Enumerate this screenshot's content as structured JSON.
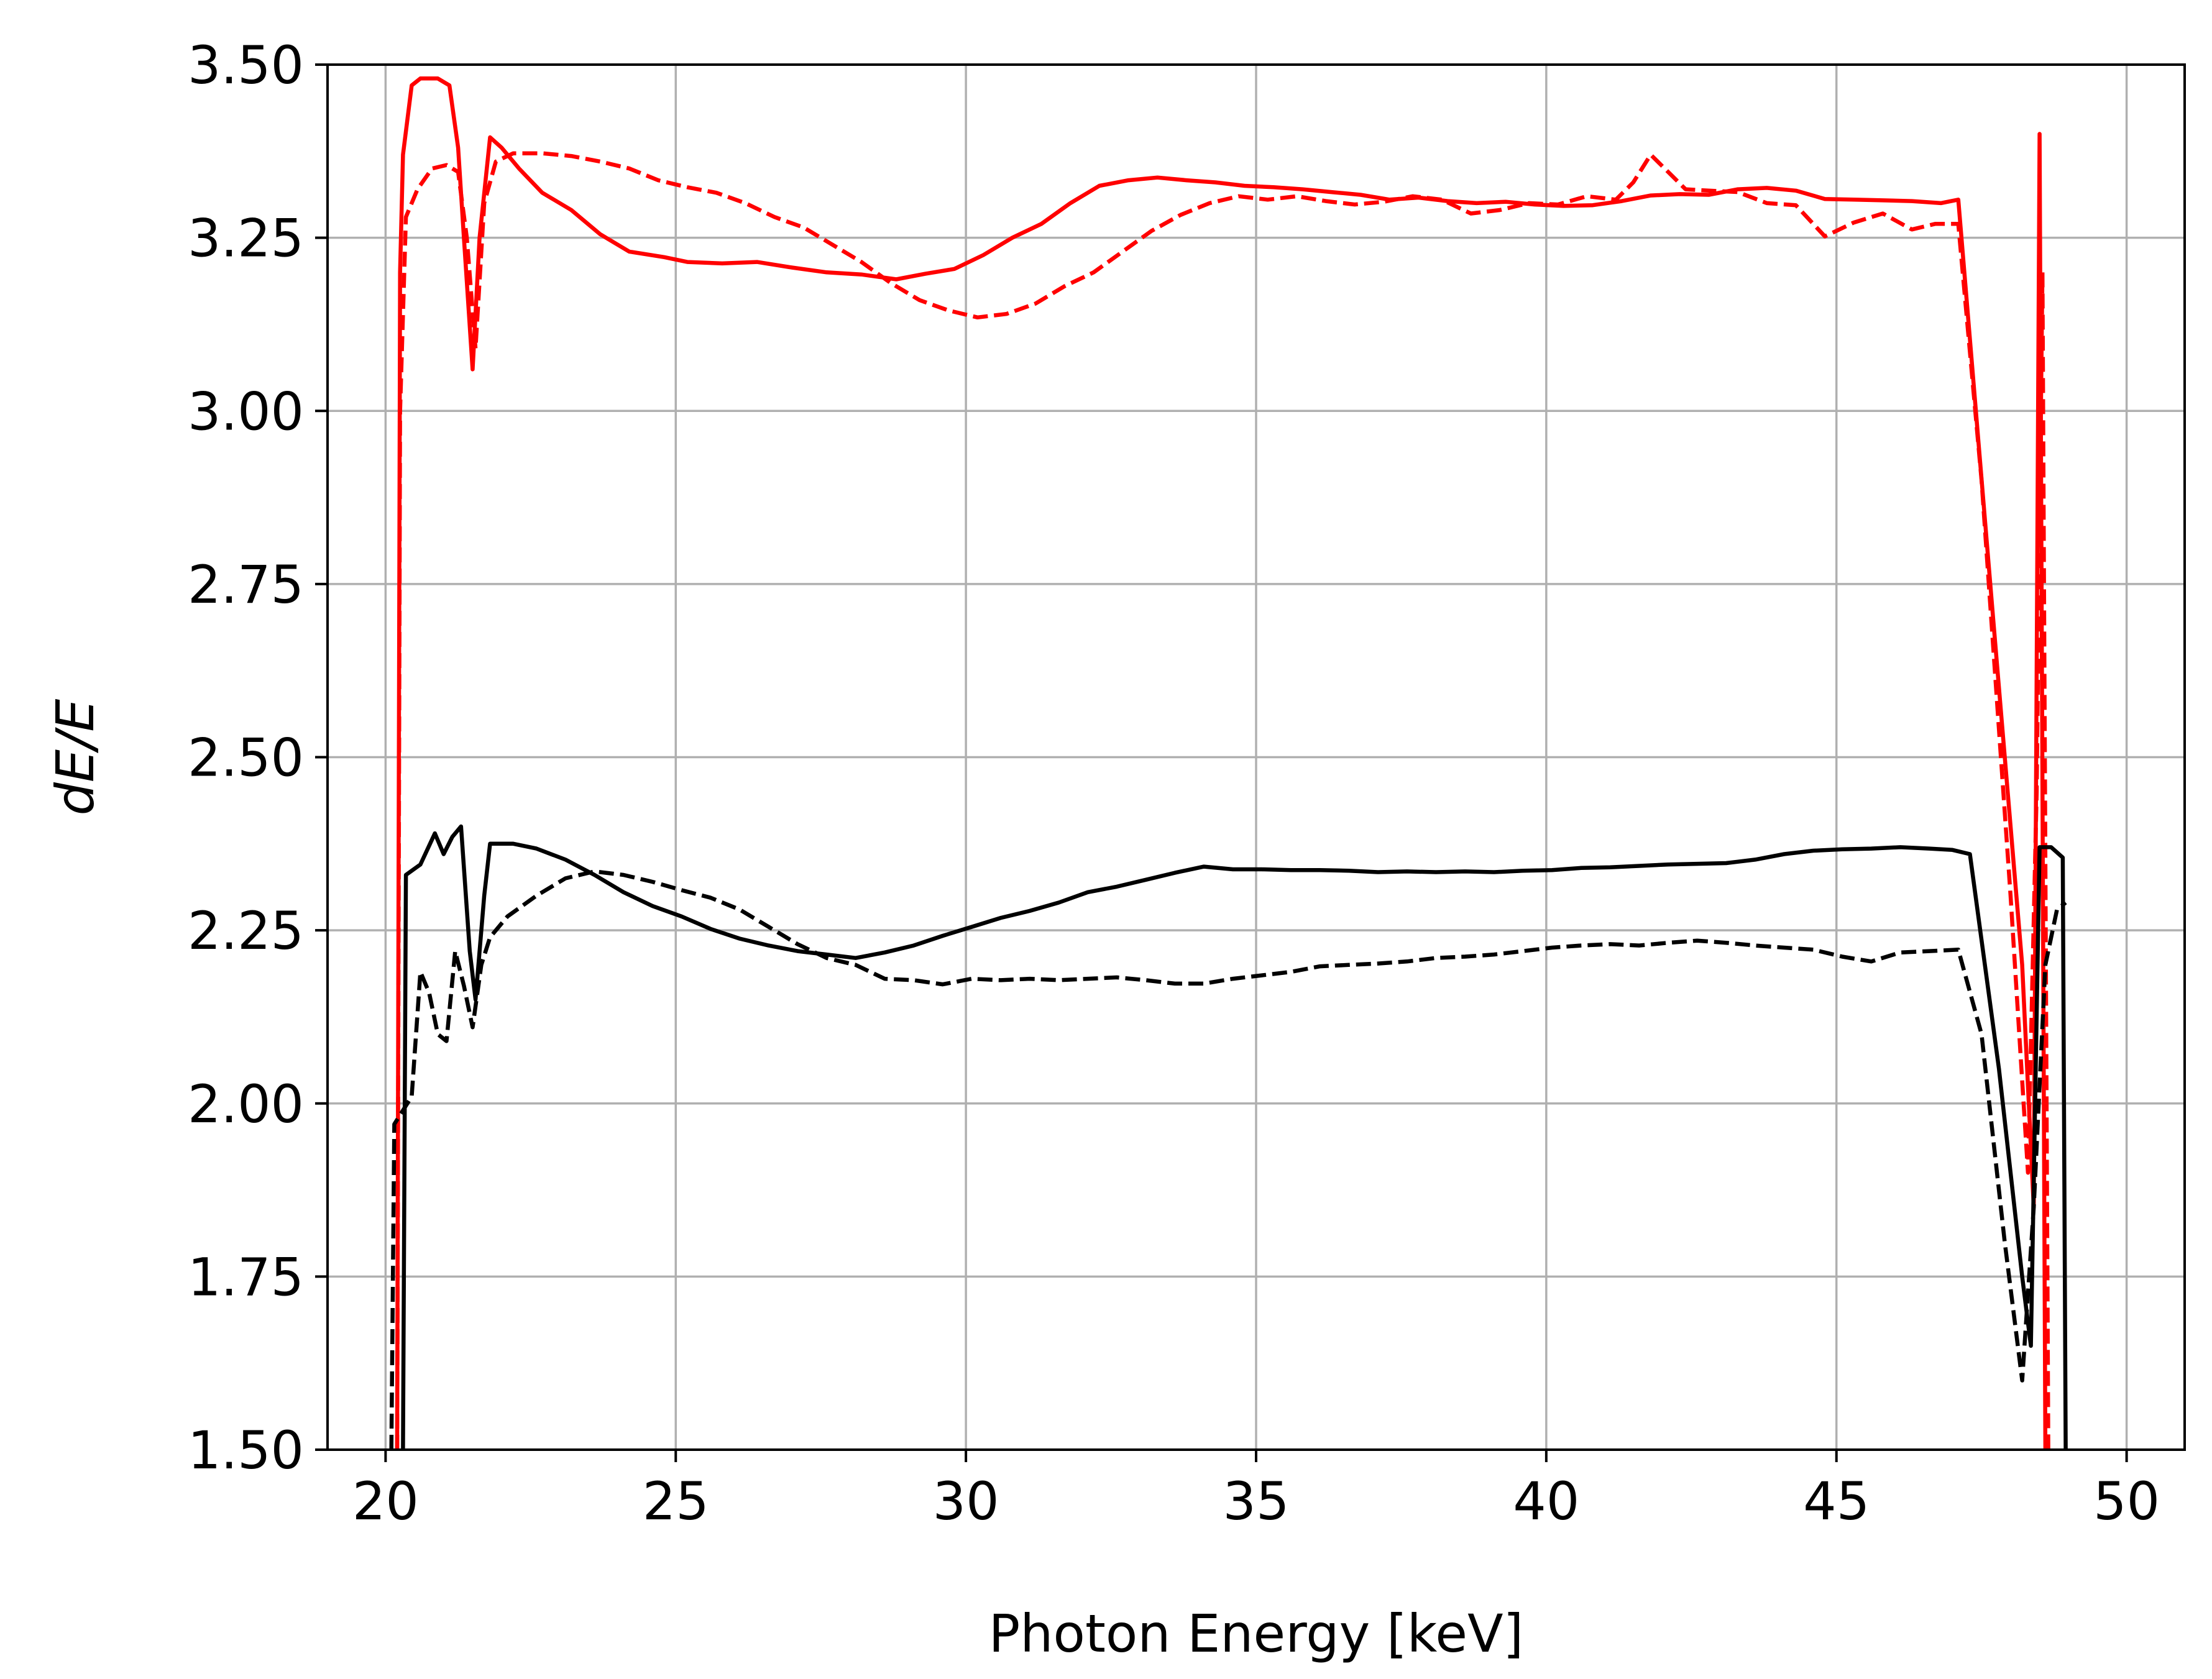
{
  "chart_data": {
    "type": "line",
    "title": "",
    "xlabel": "Photon Energy [keV]",
    "ylabel": "dE/E",
    "xlim": [
      19,
      51
    ],
    "ylim": [
      1.5,
      3.5
    ],
    "xticks": [
      20,
      25,
      30,
      35,
      40,
      45,
      50
    ],
    "yticks": [
      1.5,
      1.75,
      2.0,
      2.25,
      2.5,
      2.75,
      3.0,
      3.25,
      3.5
    ],
    "xtick_labels": [
      "20",
      "25",
      "30",
      "35",
      "40",
      "45",
      "50"
    ],
    "ytick_labels": [
      "1.50",
      "1.75",
      "2.00",
      "2.25",
      "2.50",
      "2.75",
      "3.00",
      "3.25",
      "3.50"
    ],
    "grid": true,
    "legend": "none",
    "series": [
      {
        "color": "#ff0000",
        "style": "solid",
        "points": [
          [
            20.2,
            1.5
          ],
          [
            20.25,
            3.2
          ],
          [
            20.3,
            3.37
          ],
          [
            20.45,
            3.47
          ],
          [
            20.6,
            3.48
          ],
          [
            20.9,
            3.48
          ],
          [
            21.1,
            3.47
          ],
          [
            21.25,
            3.38
          ],
          [
            21.35,
            3.25
          ],
          [
            21.5,
            3.06
          ],
          [
            21.62,
            3.25
          ],
          [
            21.8,
            3.395
          ],
          [
            22.0,
            3.38
          ],
          [
            22.3,
            3.35
          ],
          [
            22.7,
            3.315
          ],
          [
            23.2,
            3.29
          ],
          [
            23.7,
            3.255
          ],
          [
            24.2,
            3.23
          ],
          [
            24.8,
            3.222
          ],
          [
            25.2,
            3.215
          ],
          [
            25.8,
            3.213
          ],
          [
            26.4,
            3.215
          ],
          [
            27.0,
            3.207
          ],
          [
            27.6,
            3.2
          ],
          [
            28.2,
            3.197
          ],
          [
            28.8,
            3.19
          ],
          [
            29.3,
            3.198
          ],
          [
            29.8,
            3.205
          ],
          [
            30.3,
            3.225
          ],
          [
            30.8,
            3.25
          ],
          [
            31.3,
            3.27
          ],
          [
            31.8,
            3.3
          ],
          [
            32.3,
            3.325
          ],
          [
            32.8,
            3.333
          ],
          [
            33.3,
            3.337
          ],
          [
            33.8,
            3.333
          ],
          [
            34.3,
            3.33
          ],
          [
            34.8,
            3.325
          ],
          [
            35.3,
            3.323
          ],
          [
            35.8,
            3.32
          ],
          [
            36.3,
            3.316
          ],
          [
            36.8,
            3.312
          ],
          [
            37.3,
            3.305
          ],
          [
            37.8,
            3.308
          ],
          [
            38.3,
            3.303
          ],
          [
            38.8,
            3.3
          ],
          [
            39.3,
            3.302
          ],
          [
            39.8,
            3.298
          ],
          [
            40.3,
            3.296
          ],
          [
            40.8,
            3.297
          ],
          [
            41.3,
            3.303
          ],
          [
            41.8,
            3.311
          ],
          [
            42.3,
            3.313
          ],
          [
            42.8,
            3.312
          ],
          [
            43.3,
            3.32
          ],
          [
            43.8,
            3.322
          ],
          [
            44.3,
            3.318
          ],
          [
            44.8,
            3.306
          ],
          [
            45.3,
            3.305
          ],
          [
            45.8,
            3.304
          ],
          [
            46.3,
            3.303
          ],
          [
            46.8,
            3.3
          ],
          [
            47.1,
            3.305
          ],
          [
            47.7,
            2.7
          ],
          [
            48.2,
            2.2
          ],
          [
            48.4,
            1.85
          ],
          [
            48.5,
            3.4
          ],
          [
            48.6,
            1.5
          ]
        ]
      },
      {
        "color": "#ff0000",
        "style": "dashed",
        "points": [
          [
            20.2,
            1.5
          ],
          [
            20.25,
            3.0
          ],
          [
            20.35,
            3.28
          ],
          [
            20.55,
            3.32
          ],
          [
            20.8,
            3.35
          ],
          [
            21.05,
            3.355
          ],
          [
            21.25,
            3.345
          ],
          [
            21.4,
            3.25
          ],
          [
            21.55,
            3.09
          ],
          [
            21.7,
            3.3
          ],
          [
            21.9,
            3.36
          ],
          [
            22.2,
            3.372
          ],
          [
            22.7,
            3.372
          ],
          [
            23.2,
            3.368
          ],
          [
            23.7,
            3.36
          ],
          [
            24.2,
            3.35
          ],
          [
            24.7,
            3.333
          ],
          [
            25.2,
            3.323
          ],
          [
            25.7,
            3.315
          ],
          [
            26.2,
            3.3
          ],
          [
            26.7,
            3.28
          ],
          [
            27.2,
            3.265
          ],
          [
            27.7,
            3.24
          ],
          [
            28.2,
            3.215
          ],
          [
            28.7,
            3.185
          ],
          [
            29.2,
            3.16
          ],
          [
            29.7,
            3.145
          ],
          [
            30.2,
            3.135
          ],
          [
            30.7,
            3.14
          ],
          [
            31.2,
            3.155
          ],
          [
            31.7,
            3.18
          ],
          [
            32.2,
            3.2
          ],
          [
            32.7,
            3.23
          ],
          [
            33.2,
            3.26
          ],
          [
            33.7,
            3.283
          ],
          [
            34.2,
            3.3
          ],
          [
            34.7,
            3.31
          ],
          [
            35.2,
            3.305
          ],
          [
            35.7,
            3.31
          ],
          [
            36.2,
            3.303
          ],
          [
            36.7,
            3.298
          ],
          [
            37.2,
            3.302
          ],
          [
            37.7,
            3.31
          ],
          [
            38.2,
            3.305
          ],
          [
            38.7,
            3.285
          ],
          [
            39.2,
            3.29
          ],
          [
            39.7,
            3.3
          ],
          [
            40.2,
            3.298
          ],
          [
            40.7,
            3.31
          ],
          [
            41.2,
            3.305
          ],
          [
            41.5,
            3.33
          ],
          [
            41.8,
            3.37
          ],
          [
            42.1,
            3.345
          ],
          [
            42.4,
            3.32
          ],
          [
            42.8,
            3.318
          ],
          [
            43.3,
            3.316
          ],
          [
            43.8,
            3.3
          ],
          [
            44.3,
            3.297
          ],
          [
            44.8,
            3.252
          ],
          [
            45.3,
            3.272
          ],
          [
            45.8,
            3.285
          ],
          [
            46.3,
            3.262
          ],
          [
            46.7,
            3.27
          ],
          [
            47.1,
            3.27
          ],
          [
            47.5,
            2.9
          ],
          [
            48.0,
            2.3
          ],
          [
            48.3,
            1.9
          ],
          [
            48.45,
            2.45
          ],
          [
            48.55,
            3.2
          ],
          [
            48.65,
            1.5
          ]
        ]
      },
      {
        "color": "#000000",
        "style": "solid",
        "points": [
          [
            20.3,
            1.5
          ],
          [
            20.35,
            2.33
          ],
          [
            20.6,
            2.345
          ],
          [
            20.85,
            2.39
          ],
          [
            21.0,
            2.36
          ],
          [
            21.15,
            2.385
          ],
          [
            21.3,
            2.4
          ],
          [
            21.45,
            2.22
          ],
          [
            21.55,
            2.15
          ],
          [
            21.7,
            2.3
          ],
          [
            21.8,
            2.375
          ],
          [
            22.2,
            2.375
          ],
          [
            22.6,
            2.368
          ],
          [
            23.1,
            2.352
          ],
          [
            23.6,
            2.33
          ],
          [
            24.1,
            2.305
          ],
          [
            24.6,
            2.285
          ],
          [
            25.1,
            2.27
          ],
          [
            25.6,
            2.252
          ],
          [
            26.1,
            2.238
          ],
          [
            26.6,
            2.228
          ],
          [
            27.1,
            2.22
          ],
          [
            27.6,
            2.215
          ],
          [
            28.1,
            2.21
          ],
          [
            28.6,
            2.218
          ],
          [
            29.1,
            2.228
          ],
          [
            29.6,
            2.242
          ],
          [
            30.1,
            2.255
          ],
          [
            30.6,
            2.268
          ],
          [
            31.1,
            2.278
          ],
          [
            31.6,
            2.29
          ],
          [
            32.1,
            2.305
          ],
          [
            32.6,
            2.313
          ],
          [
            33.1,
            2.323
          ],
          [
            33.6,
            2.333
          ],
          [
            34.1,
            2.342
          ],
          [
            34.6,
            2.338
          ],
          [
            35.1,
            2.338
          ],
          [
            35.6,
            2.337
          ],
          [
            36.1,
            2.337
          ],
          [
            36.6,
            2.336
          ],
          [
            37.1,
            2.334
          ],
          [
            37.6,
            2.335
          ],
          [
            38.1,
            2.334
          ],
          [
            38.6,
            2.335
          ],
          [
            39.1,
            2.334
          ],
          [
            39.6,
            2.336
          ],
          [
            40.1,
            2.337
          ],
          [
            40.6,
            2.34
          ],
          [
            41.1,
            2.341
          ],
          [
            41.6,
            2.343
          ],
          [
            42.1,
            2.345
          ],
          [
            42.6,
            2.346
          ],
          [
            43.1,
            2.347
          ],
          [
            43.6,
            2.352
          ],
          [
            44.1,
            2.36
          ],
          [
            44.6,
            2.365
          ],
          [
            45.1,
            2.367
          ],
          [
            45.6,
            2.368
          ],
          [
            46.1,
            2.37
          ],
          [
            46.6,
            2.368
          ],
          [
            47.0,
            2.366
          ],
          [
            47.3,
            2.36
          ],
          [
            47.8,
            2.05
          ],
          [
            48.2,
            1.75
          ],
          [
            48.35,
            1.65
          ],
          [
            48.5,
            2.37
          ],
          [
            48.7,
            2.37
          ],
          [
            48.9,
            2.355
          ],
          [
            48.95,
            1.5
          ]
        ]
      },
      {
        "color": "#000000",
        "style": "dashed",
        "points": [
          [
            20.1,
            1.5
          ],
          [
            20.15,
            1.97
          ],
          [
            20.3,
            1.99
          ],
          [
            20.45,
            2.01
          ],
          [
            20.6,
            2.19
          ],
          [
            20.75,
            2.16
          ],
          [
            20.9,
            2.1
          ],
          [
            21.05,
            2.09
          ],
          [
            21.2,
            2.22
          ],
          [
            21.35,
            2.17
          ],
          [
            21.5,
            2.11
          ],
          [
            21.65,
            2.2
          ],
          [
            21.8,
            2.24
          ],
          [
            22.1,
            2.27
          ],
          [
            22.6,
            2.3
          ],
          [
            23.1,
            2.325
          ],
          [
            23.6,
            2.335
          ],
          [
            24.1,
            2.33
          ],
          [
            24.6,
            2.32
          ],
          [
            25.1,
            2.308
          ],
          [
            25.6,
            2.297
          ],
          [
            26.1,
            2.28
          ],
          [
            26.6,
            2.255
          ],
          [
            27.1,
            2.23
          ],
          [
            27.6,
            2.21
          ],
          [
            28.1,
            2.2
          ],
          [
            28.6,
            2.18
          ],
          [
            29.1,
            2.178
          ],
          [
            29.6,
            2.172
          ],
          [
            30.1,
            2.18
          ],
          [
            30.6,
            2.178
          ],
          [
            31.1,
            2.18
          ],
          [
            31.6,
            2.178
          ],
          [
            32.1,
            2.18
          ],
          [
            32.6,
            2.182
          ],
          [
            33.1,
            2.178
          ],
          [
            33.6,
            2.173
          ],
          [
            34.1,
            2.173
          ],
          [
            34.6,
            2.18
          ],
          [
            35.1,
            2.185
          ],
          [
            35.6,
            2.19
          ],
          [
            36.1,
            2.198
          ],
          [
            36.6,
            2.2
          ],
          [
            37.1,
            2.202
          ],
          [
            37.6,
            2.205
          ],
          [
            38.1,
            2.21
          ],
          [
            38.6,
            2.212
          ],
          [
            39.1,
            2.215
          ],
          [
            39.6,
            2.22
          ],
          [
            40.1,
            2.225
          ],
          [
            40.6,
            2.228
          ],
          [
            41.1,
            2.23
          ],
          [
            41.6,
            2.228
          ],
          [
            42.1,
            2.232
          ],
          [
            42.6,
            2.235
          ],
          [
            43.1,
            2.232
          ],
          [
            43.6,
            2.228
          ],
          [
            44.1,
            2.225
          ],
          [
            44.6,
            2.222
          ],
          [
            45.1,
            2.212
          ],
          [
            45.6,
            2.205
          ],
          [
            46.1,
            2.218
          ],
          [
            46.6,
            2.22
          ],
          [
            47.1,
            2.222
          ],
          [
            47.5,
            2.1
          ],
          [
            47.9,
            1.8
          ],
          [
            48.2,
            1.6
          ],
          [
            48.4,
            1.85
          ],
          [
            48.6,
            2.2
          ],
          [
            48.8,
            2.28
          ],
          [
            48.95,
            2.29
          ]
        ]
      }
    ]
  }
}
